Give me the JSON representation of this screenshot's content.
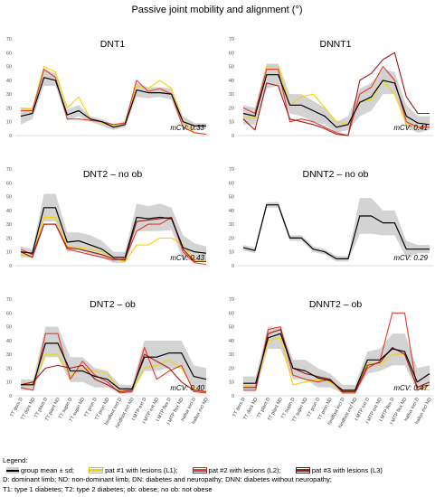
{
  "figure_title": "Passive joint mobility and alignment (°)",
  "chart_data": [
    {
      "type": "line",
      "title": "DNT1",
      "cv_label": "mCV: 0.33",
      "ylim": [
        0,
        70
      ],
      "yticks": [
        0,
        10,
        20,
        30,
        40,
        50,
        60,
        70
      ],
      "x_labels": [],
      "band_upper": [
        20,
        20,
        48,
        45,
        19,
        22,
        14,
        12,
        8,
        10,
        38,
        35,
        35,
        34,
        14,
        9,
        9
      ],
      "band_lower": [
        8,
        12,
        36,
        36,
        11,
        14,
        10,
        7,
        4,
        6,
        28,
        27,
        28,
        26,
        5,
        4,
        5
      ],
      "series": [
        {
          "role": "mean",
          "values": [
            14,
            16,
            42,
            40,
            15,
            18,
            12,
            10,
            6,
            8,
            33,
            31,
            31,
            30,
            10,
            7,
            7
          ]
        },
        {
          "role": "p1",
          "values": [
            20,
            19,
            50,
            46,
            20,
            28,
            12,
            9,
            7,
            10,
            36,
            34,
            40,
            34,
            10,
            2,
            1
          ]
        },
        {
          "role": "p2",
          "values": [
            18,
            18,
            48,
            42,
            12,
            12,
            11,
            10,
            8,
            9,
            40,
            32,
            34,
            30,
            6,
            2,
            1
          ]
        }
      ]
    },
    {
      "type": "line",
      "title": "DNNT1",
      "cv_label": "mCV: 0.41",
      "ylim": [
        0,
        70
      ],
      "yticks": [
        0,
        10,
        20,
        30,
        40,
        50,
        60,
        70
      ],
      "x_labels": [],
      "band_upper": [
        22,
        20,
        52,
        52,
        30,
        30,
        25,
        20,
        10,
        14,
        34,
        38,
        48,
        46,
        22,
        14,
        14
      ],
      "band_lower": [
        8,
        8,
        34,
        36,
        16,
        14,
        10,
        8,
        2,
        4,
        14,
        18,
        30,
        30,
        6,
        2,
        4
      ],
      "series": [
        {
          "role": "mean",
          "values": [
            16,
            14,
            44,
            44,
            22,
            22,
            18,
            14,
            6,
            8,
            24,
            28,
            40,
            38,
            14,
            9,
            8
          ]
        },
        {
          "role": "p1",
          "values": [
            14,
            12,
            50,
            50,
            22,
            28,
            30,
            20,
            10,
            8,
            25,
            26,
            40,
            30,
            8,
            6,
            6
          ]
        },
        {
          "role": "p2",
          "values": [
            20,
            16,
            48,
            48,
            10,
            12,
            10,
            6,
            2,
            0,
            30,
            35,
            50,
            40,
            10,
            6,
            6
          ]
        },
        {
          "role": "p3",
          "values": [
            12,
            4,
            38,
            36,
            12,
            10,
            8,
            5,
            1,
            0,
            40,
            45,
            55,
            60,
            28,
            16,
            16
          ]
        }
      ]
    },
    {
      "type": "line",
      "title": "DNT2 – no ob",
      "cv_label": "mCV: 0.43",
      "ylim": [
        0,
        70
      ],
      "yticks": [
        0,
        10,
        20,
        30,
        40,
        50,
        60,
        70
      ],
      "x_labels": [],
      "band_upper": [
        14,
        12,
        52,
        52,
        24,
        24,
        22,
        18,
        10,
        10,
        45,
        43,
        45,
        42,
        22,
        16,
        14
      ],
      "band_lower": [
        6,
        6,
        32,
        32,
        10,
        12,
        8,
        6,
        2,
        2,
        25,
        25,
        25,
        26,
        4,
        4,
        4
      ],
      "series": [
        {
          "role": "mean",
          "values": [
            10,
            9,
            42,
            42,
            17,
            18,
            15,
            12,
            6,
            6,
            35,
            34,
            35,
            34,
            13,
            10,
            9
          ]
        },
        {
          "role": "p1",
          "values": [
            8,
            6,
            35,
            35,
            14,
            13,
            12,
            10,
            5,
            3,
            15,
            15,
            20,
            20,
            15,
            4,
            4
          ]
        },
        {
          "role": "p2",
          "values": [
            12,
            8,
            30,
            30,
            12,
            10,
            8,
            6,
            4,
            5,
            25,
            30,
            30,
            35,
            10,
            2,
            1
          ]
        },
        {
          "role": "p3",
          "values": [
            10,
            6,
            30,
            30,
            13,
            12,
            10,
            8,
            5,
            4,
            32,
            33,
            34,
            35,
            12,
            3,
            3
          ]
        }
      ]
    },
    {
      "type": "line",
      "title": "DNNT2 – no ob",
      "cv_label": "mCV: 0.29",
      "ylim": [
        0,
        70
      ],
      "yticks": [
        0,
        10,
        20,
        30,
        40,
        50,
        60,
        70
      ],
      "x_labels": [],
      "band_upper": [
        15,
        13,
        46,
        46,
        22,
        22,
        14,
        12,
        7,
        7,
        49,
        49,
        40,
        40,
        18,
        15,
        15
      ],
      "band_lower": [
        11,
        9,
        42,
        42,
        18,
        18,
        10,
        8,
        3,
        3,
        23,
        23,
        22,
        22,
        6,
        9,
        9
      ],
      "series": [
        {
          "role": "mean",
          "values": [
            13,
            11,
            44,
            44,
            20,
            20,
            12,
            10,
            5,
            5,
            36,
            36,
            31,
            31,
            12,
            12,
            12
          ]
        }
      ]
    },
    {
      "type": "line",
      "title": "DNT2 – ob",
      "cv_label": "mCV: 0.40",
      "ylim": [
        0,
        70
      ],
      "yticks": [
        0,
        10,
        20,
        30,
        40,
        50,
        60,
        70
      ],
      "x_labels": [
        "TT dors D",
        "TT dors ND",
        "TT plant D",
        "TT plant ND",
        "TT supin D",
        "TT supin ND",
        "TT pron D",
        "TT pron ND",
        "hindfoot incl D",
        "hindfoot incl ND",
        "I MTP ext D",
        "I MTP ext ND",
        "I MTP flex D",
        "I MTP flex ND",
        "hallux incl D",
        "hallux incl ND"
      ],
      "band_upper": [
        12,
        12,
        50,
        50,
        28,
        28,
        20,
        18,
        8,
        8,
        40,
        40,
        40,
        40,
        22,
        20
      ],
      "band_lower": [
        4,
        4,
        28,
        28,
        10,
        10,
        6,
        6,
        2,
        2,
        18,
        18,
        20,
        20,
        6,
        4
      ],
      "series": [
        {
          "role": "mean",
          "values": [
            8,
            8,
            38,
            38,
            18,
            18,
            14,
            12,
            5,
            5,
            28,
            28,
            31,
            31,
            14,
            12
          ]
        },
        {
          "role": "p1",
          "values": [
            10,
            8,
            30,
            30,
            14,
            20,
            18,
            16,
            4,
            4,
            20,
            22,
            26,
            20,
            5,
            3
          ]
        },
        {
          "role": "p2",
          "values": [
            6,
            4,
            45,
            45,
            12,
            25,
            15,
            10,
            2,
            3,
            35,
            12,
            18,
            22,
            3,
            2
          ]
        },
        {
          "role": "p3",
          "values": [
            8,
            10,
            20,
            22,
            20,
            22,
            12,
            8,
            3,
            4,
            30,
            25,
            20,
            10,
            4,
            3
          ]
        }
      ]
    },
    {
      "type": "line",
      "title": "DNNT2 – ob",
      "cv_label": "mCV: 0.47",
      "ylim": [
        0,
        70
      ],
      "yticks": [
        0,
        10,
        20,
        30,
        40,
        50,
        60,
        70
      ],
      "x_labels": [
        "TT dors D",
        "TT dors ND",
        "TT plant D",
        "TT plant ND",
        "TT supin D",
        "TT supin ND",
        "TT pron D",
        "TT pron ND",
        "hindfoot incl D",
        "hindfoot incl ND",
        "I MTP ext D",
        "I MTP ext ND",
        "I MTP flex D",
        "I MTP flex ND",
        "hallux incl D",
        "hallux incl ND"
      ],
      "band_upper": [
        14,
        14,
        50,
        50,
        26,
        26,
        20,
        16,
        8,
        8,
        32,
        34,
        45,
        45,
        20,
        22
      ],
      "band_lower": [
        4,
        4,
        34,
        34,
        12,
        12,
        6,
        6,
        2,
        2,
        16,
        18,
        22,
        22,
        4,
        8
      ],
      "series": [
        {
          "role": "mean",
          "values": [
            9,
            9,
            42,
            45,
            20,
            18,
            13,
            11,
            4,
            4,
            26,
            26,
            34,
            32,
            10,
            16
          ]
        },
        {
          "role": "p1",
          "values": [
            8,
            6,
            40,
            42,
            8,
            10,
            12,
            10,
            2,
            4,
            24,
            22,
            30,
            30,
            6,
            4
          ]
        },
        {
          "role": "p2",
          "values": [
            4,
            4,
            48,
            50,
            15,
            12,
            10,
            12,
            2,
            2,
            20,
            25,
            60,
            60,
            4,
            8
          ]
        },
        {
          "role": "p3",
          "values": [
            6,
            6,
            45,
            48,
            20,
            16,
            14,
            12,
            3,
            3,
            22,
            24,
            35,
            30,
            6,
            10
          ]
        }
      ]
    }
  ],
  "styles": {
    "mean": "#000000",
    "band": "#d3d3d3",
    "p1": "#f2d500",
    "p2": "#e53a2e",
    "p3": "#9e1b1b",
    "axis": "#d0d0d0",
    "tick_text": "#555555"
  },
  "legend": {
    "heading": "Legend:",
    "items": [
      {
        "role": "mean",
        "label": "group mean ± sd;"
      },
      {
        "role": "p1",
        "label": "pat #1 with lesions (L1);"
      },
      {
        "role": "p2",
        "label": "pat #2 with lesions (L2);"
      },
      {
        "role": "p3",
        "label": "pat #3 with lesions (L3)"
      }
    ],
    "notes": [
      "D: dominant limb; ND: non-dominant limb; DN: diabetes and neuropathy; DNN: diabetes without neuropathy;",
      "T1: type 1 diabetes; T2: type 2 diabetes; ob: obese; no ob: not obese"
    ]
  }
}
